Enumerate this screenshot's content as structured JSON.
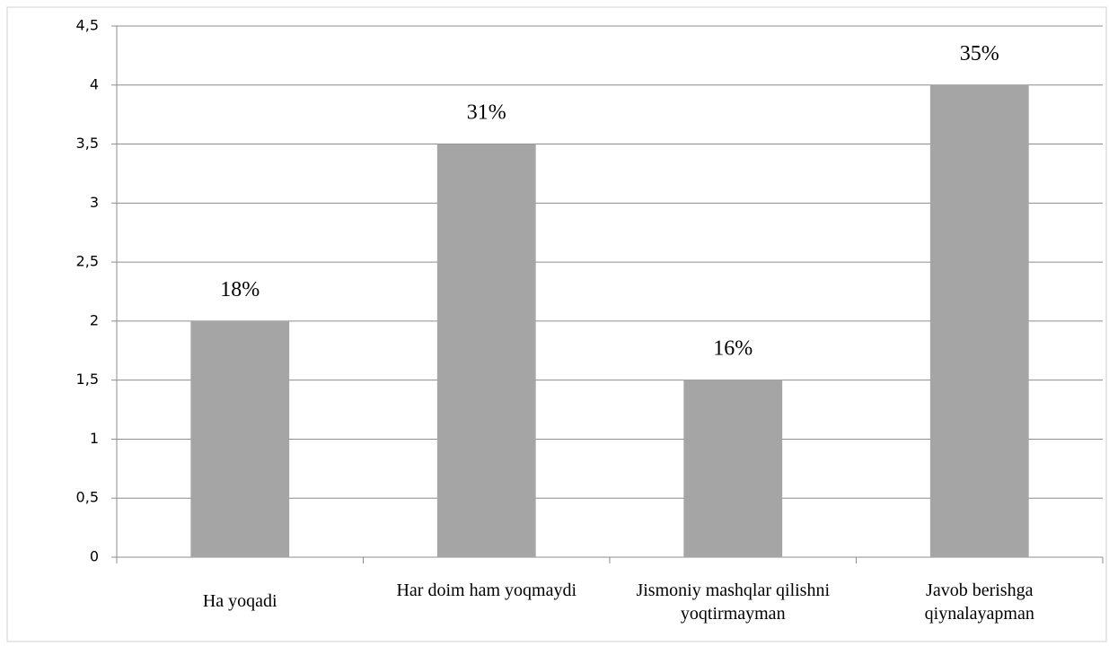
{
  "chart_data": {
    "type": "bar",
    "categories": [
      "Ha yoqadi",
      "Har doim ham yoqmaydi",
      "Jismoniy mashqlar qilishni yoqtirmayman",
      "Javob berishga qiynalayapman"
    ],
    "values": [
      2,
      3.5,
      1.5,
      4
    ],
    "annotations": [
      "18%",
      "31%",
      "16%",
      "35%"
    ],
    "color": "#a5a5a5",
    "ylim": [
      0,
      4.5
    ],
    "yticks": [
      0,
      {
        "value": 0.5,
        "label": "0,5"
      },
      1,
      {
        "value": 1.5,
        "label": "1,5"
      },
      2,
      {
        "value": 2.5,
        "label": "2,5"
      },
      3,
      {
        "value": 3.5,
        "label": "3,5"
      },
      4,
      {
        "value": 4.5,
        "label": "4,5"
      }
    ],
    "grid": true
  }
}
